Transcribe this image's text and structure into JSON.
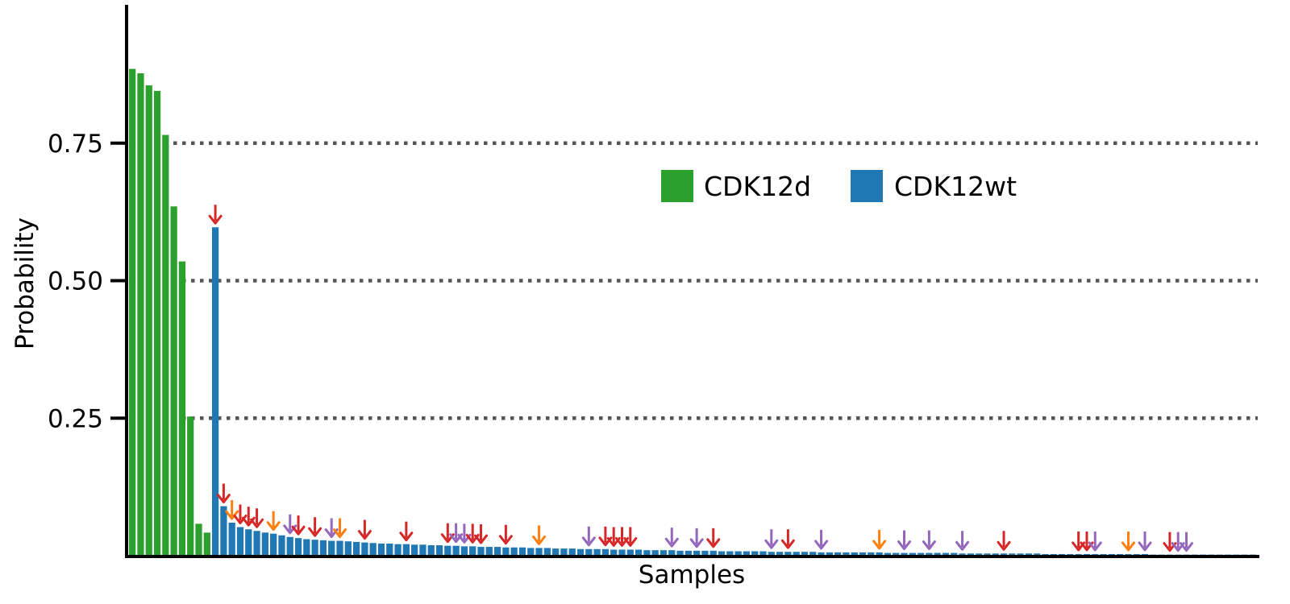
{
  "chart_data": {
    "type": "bar",
    "title": "",
    "xlabel": "Samples",
    "ylabel": "Probability",
    "ylim": [
      0,
      1.0
    ],
    "yticks": [
      0.25,
      0.5,
      0.75
    ],
    "ytick_labels": [
      "0.25",
      "0.50",
      "0.75"
    ],
    "grid": {
      "axis": "y",
      "style": "dotted",
      "at": [
        0.25,
        0.5,
        0.75
      ]
    },
    "legend": {
      "placement": "upper center"
    },
    "series": [
      {
        "name": "CDK12d",
        "color": "#2ca02c",
        "values": [
          0.885,
          0.877,
          0.855,
          0.845,
          0.765,
          0.635,
          0.535,
          0.253,
          0.058,
          0.042
        ]
      },
      {
        "name": "CDK12wt",
        "color": "#1f77b4",
        "values": [
          0.597,
          0.09,
          0.06,
          0.052,
          0.048,
          0.045,
          0.042,
          0.04,
          0.037,
          0.034,
          0.032,
          0.03,
          0.029,
          0.028,
          0.027,
          0.027,
          0.026,
          0.025,
          0.024,
          0.023,
          0.022,
          0.022,
          0.021,
          0.021,
          0.02,
          0.02,
          0.019,
          0.019,
          0.018,
          0.018,
          0.017,
          0.017,
          0.016,
          0.016,
          0.016,
          0.015,
          0.015,
          0.015,
          0.014,
          0.014,
          0.014,
          0.013,
          0.013,
          0.013,
          0.012,
          0.012,
          0.012,
          0.012,
          0.011,
          0.011,
          0.011,
          0.011,
          0.01,
          0.01,
          0.01,
          0.01,
          0.009,
          0.009,
          0.009,
          0.009,
          0.009,
          0.008,
          0.008,
          0.008,
          0.008,
          0.008,
          0.008,
          0.007,
          0.007,
          0.007,
          0.007,
          0.007,
          0.007,
          0.006,
          0.006,
          0.006,
          0.006,
          0.006,
          0.006,
          0.006,
          0.006,
          0.005,
          0.005,
          0.005,
          0.005,
          0.005,
          0.005,
          0.005,
          0.005,
          0.005,
          0.004,
          0.004,
          0.004,
          0.004,
          0.004,
          0.004,
          0.004,
          0.004,
          0.004,
          0.004,
          0.003,
          0.003,
          0.003,
          0.003,
          0.003,
          0.003,
          0.003,
          0.003,
          0.003,
          0.003,
          0.003,
          0.003,
          0.003,
          0.002,
          0.002,
          0.002,
          0.002,
          0.002,
          0.002,
          0.002,
          0.002,
          0.002,
          0.002,
          0.002,
          0.002,
          0.002
        ]
      }
    ],
    "arrow_markers": {
      "colors": {
        "red": "#d62728",
        "orange": "#ff7f0e",
        "purple": "#9467bd"
      },
      "marks": [
        {
          "bar": 10,
          "color": "red"
        },
        {
          "bar": 11,
          "color": "red"
        },
        {
          "bar": 12,
          "color": "orange"
        },
        {
          "bar": 13,
          "color": "red"
        },
        {
          "bar": 14,
          "color": "red"
        },
        {
          "bar": 15,
          "color": "red"
        },
        {
          "bar": 17,
          "color": "orange"
        },
        {
          "bar": 19,
          "color": "purple"
        },
        {
          "bar": 20,
          "color": "red"
        },
        {
          "bar": 22,
          "color": "red"
        },
        {
          "bar": 24,
          "color": "purple"
        },
        {
          "bar": 25,
          "color": "orange"
        },
        {
          "bar": 28,
          "color": "red"
        },
        {
          "bar": 33,
          "color": "red"
        },
        {
          "bar": 38,
          "color": "red"
        },
        {
          "bar": 39,
          "color": "purple"
        },
        {
          "bar": 40,
          "color": "purple"
        },
        {
          "bar": 41,
          "color": "red"
        },
        {
          "bar": 42,
          "color": "red"
        },
        {
          "bar": 45,
          "color": "red"
        },
        {
          "bar": 49,
          "color": "orange"
        },
        {
          "bar": 55,
          "color": "purple"
        },
        {
          "bar": 57,
          "color": "red"
        },
        {
          "bar": 58,
          "color": "red"
        },
        {
          "bar": 59,
          "color": "red"
        },
        {
          "bar": 60,
          "color": "red"
        },
        {
          "bar": 65,
          "color": "purple"
        },
        {
          "bar": 68,
          "color": "purple"
        },
        {
          "bar": 70,
          "color": "red"
        },
        {
          "bar": 77,
          "color": "purple"
        },
        {
          "bar": 79,
          "color": "red"
        },
        {
          "bar": 83,
          "color": "purple"
        },
        {
          "bar": 90,
          "color": "orange"
        },
        {
          "bar": 93,
          "color": "purple"
        },
        {
          "bar": 96,
          "color": "purple"
        },
        {
          "bar": 100,
          "color": "purple"
        },
        {
          "bar": 105,
          "color": "red"
        },
        {
          "bar": 114,
          "color": "red"
        },
        {
          "bar": 115,
          "color": "red"
        },
        {
          "bar": 116,
          "color": "purple"
        },
        {
          "bar": 120,
          "color": "orange"
        },
        {
          "bar": 122,
          "color": "purple"
        },
        {
          "bar": 125,
          "color": "red"
        },
        {
          "bar": 126,
          "color": "purple"
        },
        {
          "bar": 127,
          "color": "purple"
        }
      ]
    }
  }
}
